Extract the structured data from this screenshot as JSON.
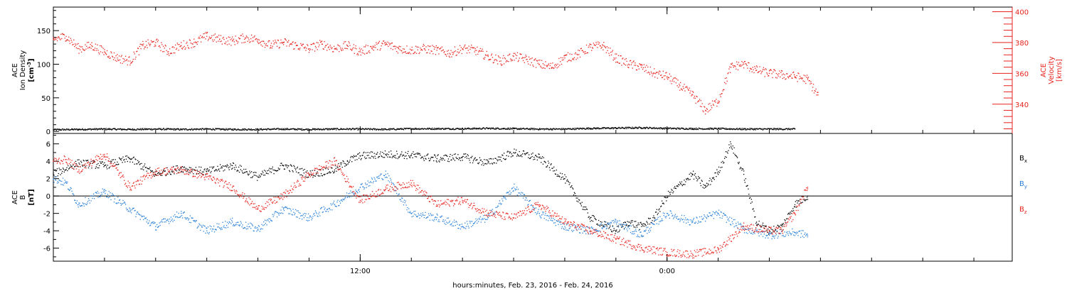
{
  "x_axis": {
    "label": "hours:minutes, Feb. 23, 2016 - Feb. 24, 2016",
    "tick_labels": [
      {
        "hour": 12,
        "label": "12:00"
      },
      {
        "hour": 24,
        "label": "0:00"
      }
    ],
    "minor_tick_every_hours": 2,
    "range_hours": [
      0,
      37.5
    ]
  },
  "chart_data": [
    {
      "type": "scatter",
      "panel": "top",
      "y_left": {
        "label_lines": [
          "ACE",
          "Ion Density"
        ],
        "unit": "[cm",
        "unit_sup": "-3",
        "unit_end": "]",
        "ylim": [
          -3,
          185
        ],
        "tick_labels": [
          0,
          50,
          100,
          150
        ]
      },
      "y_right": {
        "label_lines": [
          "ACE",
          "Velocity"
        ],
        "unit": "[km/s]",
        "ylim": [
          321,
          403
        ],
        "tick_labels": [
          340,
          360,
          380,
          400
        ],
        "color": "#e8221c"
      },
      "series": [
        {
          "axis": "left",
          "color": "#000000",
          "points": [
            [
              0,
              2.5
            ],
            [
              1,
              3
            ],
            [
              2,
              3.5
            ],
            [
              3,
              3
            ],
            [
              4,
              3.5
            ],
            [
              5,
              3
            ],
            [
              6,
              3.5
            ],
            [
              7,
              3
            ],
            [
              8,
              3
            ],
            [
              9,
              3.5
            ],
            [
              10,
              3
            ],
            [
              11,
              3.5
            ],
            [
              12,
              3.5
            ],
            [
              13,
              3
            ],
            [
              14,
              4
            ],
            [
              15,
              4
            ],
            [
              16,
              4
            ],
            [
              17,
              4.5
            ],
            [
              18,
              4
            ],
            [
              19,
              3.5
            ],
            [
              20,
              3.5
            ],
            [
              21,
              4.5
            ],
            [
              22,
              5
            ],
            [
              23,
              5.5
            ],
            [
              24,
              4.5
            ],
            [
              25,
              4
            ],
            [
              26,
              4
            ],
            [
              27,
              3.5
            ],
            [
              28,
              3.5
            ],
            [
              29,
              3.5
            ]
          ]
        },
        {
          "axis": "right",
          "color": "#e8221c",
          "points": [
            [
              0,
              382
            ],
            [
              0.5,
              384
            ],
            [
              1,
              376
            ],
            [
              1.5,
              378
            ],
            [
              2,
              374
            ],
            [
              2.5,
              370
            ],
            [
              3,
              368
            ],
            [
              3.5,
              378
            ],
            [
              4,
              380
            ],
            [
              4.5,
              374
            ],
            [
              5,
              378
            ],
            [
              5.5,
              380
            ],
            [
              6,
              384
            ],
            [
              6.5,
              382
            ],
            [
              7,
              381
            ],
            [
              7.5,
              383
            ],
            [
              8,
              382
            ],
            [
              8.5,
              378
            ],
            [
              9,
              380
            ],
            [
              9.5,
              378
            ],
            [
              10,
              376
            ],
            [
              10.5,
              379
            ],
            [
              11,
              376
            ],
            [
              11.5,
              378
            ],
            [
              12,
              374
            ],
            [
              12.5,
              377
            ],
            [
              13,
              379
            ],
            [
              13.5,
              376
            ],
            [
              14,
              375
            ],
            [
              14.5,
              376
            ],
            [
              15,
              375
            ],
            [
              15.5,
              373
            ],
            [
              16,
              376
            ],
            [
              16.5,
              375
            ],
            [
              17,
              371
            ],
            [
              17.5,
              368
            ],
            [
              18,
              371
            ],
            [
              18.5,
              369
            ],
            [
              19,
              366
            ],
            [
              19.5,
              364
            ],
            [
              20,
              370
            ],
            [
              20.5,
              372
            ],
            [
              21,
              377
            ],
            [
              21.5,
              378
            ],
            [
              22,
              370
            ],
            [
              22.5,
              366
            ],
            [
              23,
              364
            ],
            [
              23.5,
              360
            ],
            [
              24,
              358
            ],
            [
              24.5,
              352
            ],
            [
              25,
              346
            ],
            [
              25.5,
              336
            ],
            [
              26,
              342
            ],
            [
              26.5,
              364
            ],
            [
              27,
              366
            ],
            [
              27.5,
              362
            ],
            [
              28,
              360
            ],
            [
              28.5,
              359
            ],
            [
              29,
              358
            ],
            [
              29.5,
              356
            ],
            [
              29.9,
              346
            ]
          ]
        }
      ]
    },
    {
      "type": "scatter",
      "panel": "bottom",
      "y_left": {
        "label_lines": [
          "ACE",
          "B"
        ],
        "unit": "[nT]",
        "ylim": [
          -7.5,
          7.2
        ],
        "tick_labels": [
          -6,
          -4,
          -2,
          0,
          2,
          4,
          6
        ]
      },
      "legend_position": "right",
      "series": [
        {
          "name": "B",
          "subscript": "x",
          "color": "#000000",
          "points": [
            [
              0,
              2.5
            ],
            [
              1,
              3.8
            ],
            [
              2,
              3.5
            ],
            [
              3,
              4.3
            ],
            [
              4,
              2.5
            ],
            [
              5,
              3.2
            ],
            [
              6,
              2.8
            ],
            [
              7,
              3.5
            ],
            [
              8,
              2.2
            ],
            [
              9,
              3.5
            ],
            [
              10,
              2.5
            ],
            [
              11,
              3
            ],
            [
              11.5,
              4
            ],
            [
              12,
              4.6
            ],
            [
              13,
              4.8
            ],
            [
              14,
              4.7
            ],
            [
              15,
              4.3
            ],
            [
              16,
              4.5
            ],
            [
              17,
              3.8
            ],
            [
              18,
              5
            ],
            [
              19,
              4.4
            ],
            [
              20,
              2
            ],
            [
              21,
              -2.5
            ],
            [
              22,
              -4
            ],
            [
              22.5,
              -3
            ],
            [
              23,
              -3.5
            ],
            [
              23.5,
              -2.5
            ],
            [
              24,
              0
            ],
            [
              25,
              2.5
            ],
            [
              25.5,
              1
            ],
            [
              26,
              2.8
            ],
            [
              26.5,
              6
            ],
            [
              27,
              2.5
            ],
            [
              27.5,
              -3
            ],
            [
              28,
              -4
            ],
            [
              28.5,
              -3.5
            ],
            [
              29,
              -1
            ],
            [
              29.5,
              0
            ]
          ]
        },
        {
          "name": "B",
          "subscript": "y",
          "color": "#2b82d9",
          "points": [
            [
              0,
              2
            ],
            [
              0.5,
              1.5
            ],
            [
              1,
              -1
            ],
            [
              2,
              0.5
            ],
            [
              3,
              -1.5
            ],
            [
              4,
              -3.5
            ],
            [
              5,
              -2
            ],
            [
              6,
              -4
            ],
            [
              7,
              -3
            ],
            [
              8,
              -3.8
            ],
            [
              9,
              -1.5
            ],
            [
              10,
              -2.5
            ],
            [
              11,
              -1
            ],
            [
              12,
              1
            ],
            [
              13,
              2.5
            ],
            [
              14,
              -2
            ],
            [
              15,
              -2.5
            ],
            [
              16,
              -3.5
            ],
            [
              17,
              -2.5
            ],
            [
              18,
              1
            ],
            [
              19,
              -2
            ],
            [
              20,
              -3.5
            ],
            [
              21,
              -4
            ],
            [
              22,
              -3
            ],
            [
              23,
              -4.5
            ],
            [
              24,
              -2
            ],
            [
              25,
              -3
            ],
            [
              26,
              -2
            ],
            [
              27,
              -3.8
            ],
            [
              28,
              -4.5
            ],
            [
              29,
              -4.2
            ],
            [
              29.5,
              -4.5
            ]
          ]
        },
        {
          "name": "B",
          "subscript": "z",
          "color": "#e8221c",
          "points": [
            [
              0,
              4
            ],
            [
              0.5,
              4.2
            ],
            [
              1,
              3
            ],
            [
              2,
              4.8
            ],
            [
              3,
              1
            ],
            [
              4,
              2.8
            ],
            [
              5,
              3
            ],
            [
              6,
              2.2
            ],
            [
              7,
              1
            ],
            [
              8,
              -1.5
            ],
            [
              9,
              0
            ],
            [
              10,
              2.5
            ],
            [
              11,
              4
            ],
            [
              12,
              -0.5
            ],
            [
              13,
              0.8
            ],
            [
              14,
              1.5
            ],
            [
              15,
              -1
            ],
            [
              16,
              -0.5
            ],
            [
              17,
              -2
            ],
            [
              18,
              -2.5
            ],
            [
              19,
              -1
            ],
            [
              20,
              -3
            ],
            [
              21,
              -4
            ],
            [
              22,
              -5
            ],
            [
              23,
              -6
            ],
            [
              24,
              -6.5
            ],
            [
              25,
              -6.7
            ],
            [
              26,
              -6.2
            ],
            [
              27,
              -3.5
            ],
            [
              28,
              -4
            ],
            [
              28.5,
              -4
            ],
            [
              29,
              -2
            ],
            [
              29.5,
              1
            ]
          ]
        }
      ]
    }
  ]
}
